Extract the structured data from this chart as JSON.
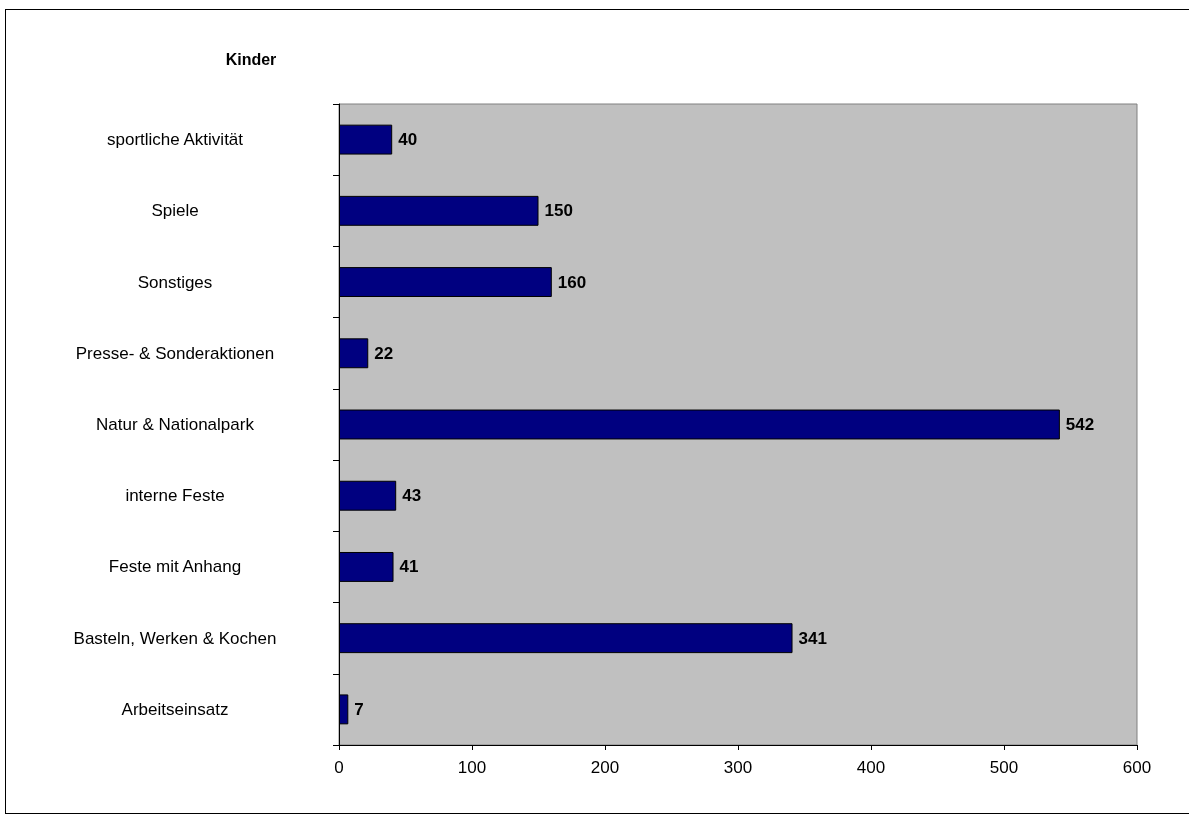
{
  "chart_data": {
    "type": "bar",
    "orientation": "horizontal",
    "title": "Kinder",
    "categories": [
      "sportliche Aktivität",
      "Spiele",
      "Sonstiges",
      "Presse- & Sonderaktionen",
      "Natur & Nationalpark",
      "interne Feste",
      "Feste mit Anhang",
      "Basteln, Werken & Kochen",
      "Arbeitseinsatz"
    ],
    "values": [
      40,
      150,
      160,
      22,
      542,
      43,
      41,
      341,
      7
    ],
    "color": "#000080",
    "xlim": [
      0,
      600
    ],
    "xticks": [
      0,
      100,
      200,
      300,
      400,
      500,
      600
    ],
    "data_labels": true,
    "grid": false
  }
}
